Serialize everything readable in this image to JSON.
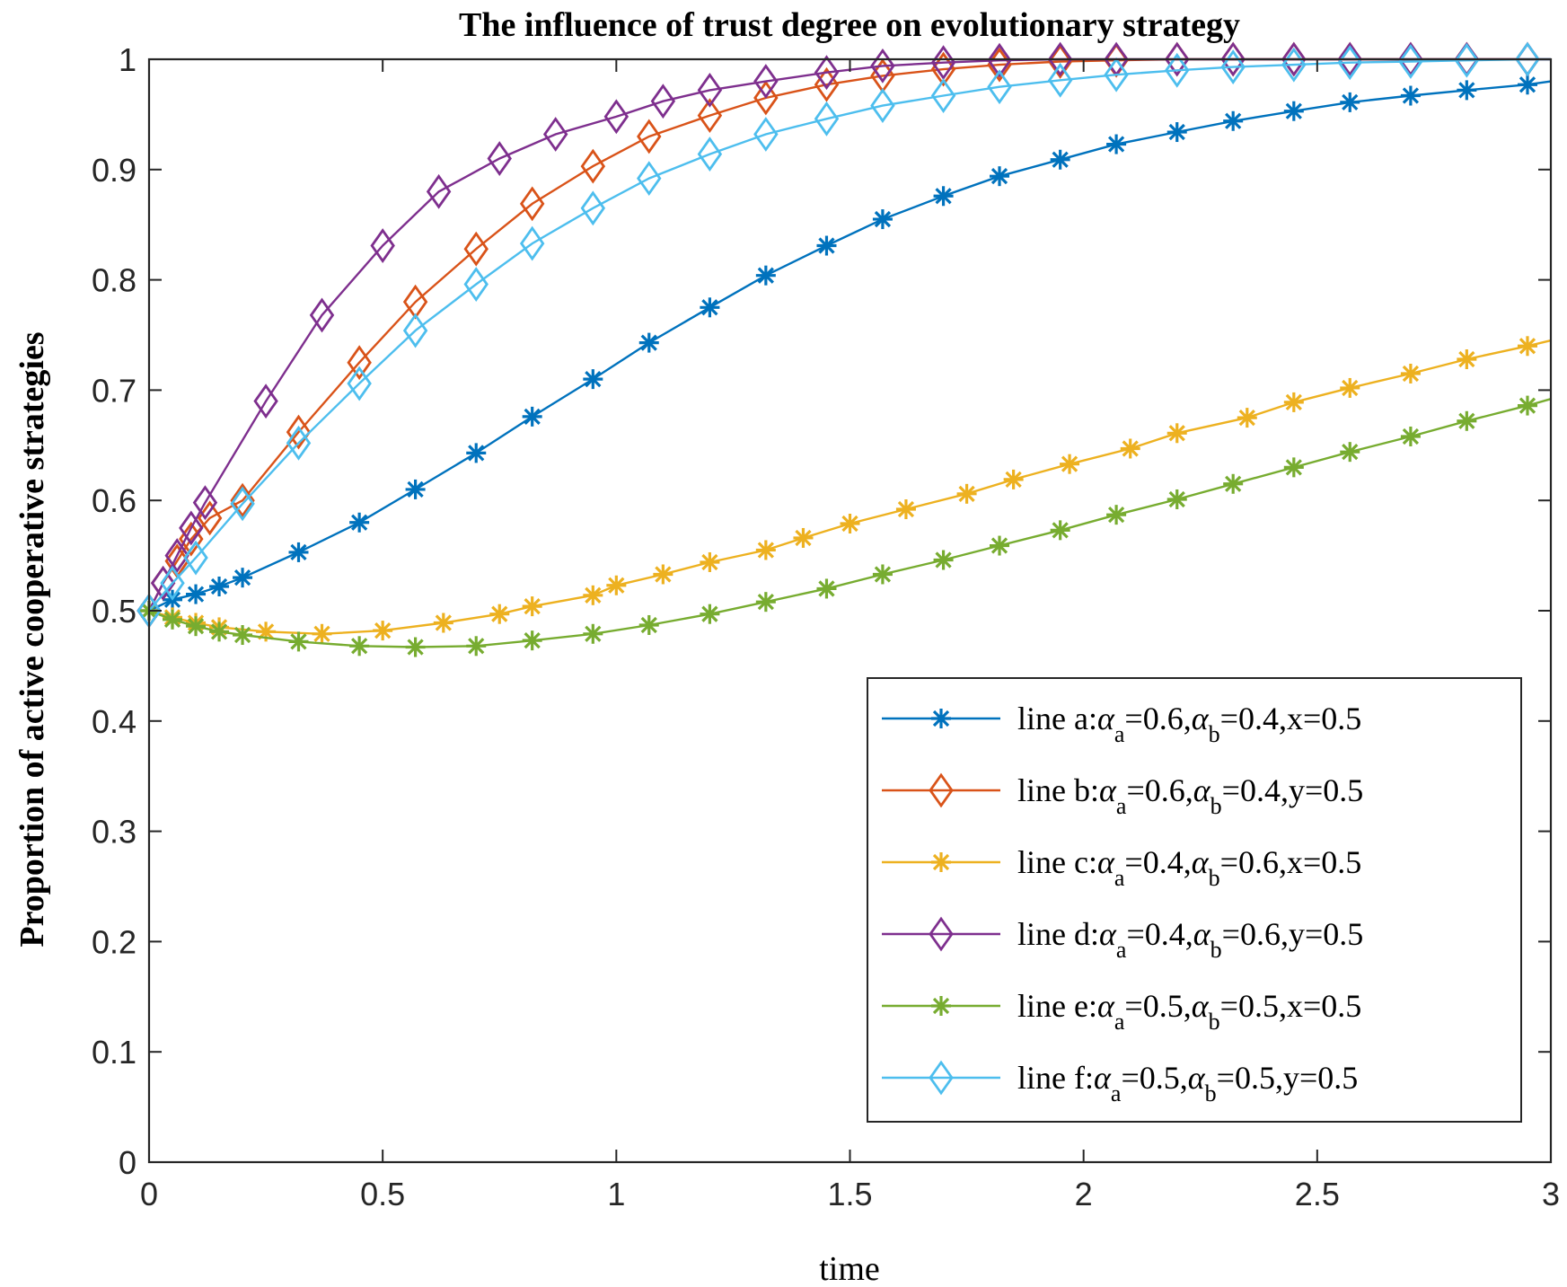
{
  "chart_data": {
    "type": "line",
    "title": "The influence of trust degree on evolutionary strategy",
    "xlabel": "time",
    "ylabel": "Proportion of active cooperative strategies",
    "xlim": [
      0,
      3
    ],
    "ylim": [
      0,
      1
    ],
    "xticks": [
      0,
      0.5,
      1,
      1.5,
      2,
      2.5,
      3
    ],
    "xtick_labels": [
      "0",
      "0.5",
      "1",
      "1.5",
      "2",
      "2.5",
      "3"
    ],
    "yticks": [
      0,
      0.1,
      0.2,
      0.3,
      0.4,
      0.5,
      0.6,
      0.7,
      0.8,
      0.9,
      1
    ],
    "ytick_labels": [
      "0",
      "0.1",
      "0.2",
      "0.3",
      "0.4",
      "0.5",
      "0.6",
      "0.7",
      "0.8",
      "0.9",
      "1"
    ],
    "grid": false,
    "legend_position": "bottom-right",
    "legend_greek": "α",
    "series": [
      {
        "name": "line a:αa=0.6,αb=0.4,x=0.5",
        "legend_parts": {
          "prefix": "line a:",
          "sub1": "a",
          "v1": "=0.6,",
          "sub2": "b",
          "v2": "=0.4,x=0.5"
        },
        "color": "#0072BD",
        "marker": "asterisk",
        "points": [
          [
            0,
            0.5
          ],
          [
            0.05,
            0.51
          ],
          [
            0.1,
            0.515
          ],
          [
            0.15,
            0.522
          ],
          [
            0.2,
            0.53
          ],
          [
            0.32,
            0.553
          ],
          [
            0.45,
            0.58
          ],
          [
            0.57,
            0.61
          ],
          [
            0.7,
            0.643
          ],
          [
            0.82,
            0.676
          ],
          [
            0.95,
            0.71
          ],
          [
            1.07,
            0.743
          ],
          [
            1.2,
            0.775
          ],
          [
            1.32,
            0.804
          ],
          [
            1.45,
            0.831
          ],
          [
            1.57,
            0.855
          ],
          [
            1.7,
            0.876
          ],
          [
            1.82,
            0.894
          ],
          [
            1.95,
            0.909
          ],
          [
            2.07,
            0.923
          ],
          [
            2.2,
            0.934
          ],
          [
            2.32,
            0.944
          ],
          [
            2.45,
            0.953
          ],
          [
            2.57,
            0.961
          ],
          [
            2.7,
            0.967
          ],
          [
            2.82,
            0.972
          ],
          [
            2.95,
            0.977
          ],
          [
            3,
            0.98
          ]
        ]
      },
      {
        "name": "line b:αa=0.6,αb=0.4,y=0.5",
        "legend_parts": {
          "prefix": "line b:",
          "sub1": "a",
          "v1": "=0.6,",
          "sub2": "b",
          "v2": "=0.4,y=0.5"
        },
        "color": "#D95319",
        "marker": "diamond",
        "points": [
          [
            0,
            0.5
          ],
          [
            0.03,
            0.525
          ],
          [
            0.06,
            0.545
          ],
          [
            0.09,
            0.565
          ],
          [
            0.13,
            0.584
          ],
          [
            0.2,
            0.6
          ],
          [
            0.32,
            0.662
          ],
          [
            0.45,
            0.725
          ],
          [
            0.57,
            0.78
          ],
          [
            0.7,
            0.828
          ],
          [
            0.82,
            0.869
          ],
          [
            0.95,
            0.903
          ],
          [
            1.07,
            0.93
          ],
          [
            1.2,
            0.949
          ],
          [
            1.32,
            0.965
          ],
          [
            1.45,
            0.977
          ],
          [
            1.57,
            0.985
          ],
          [
            1.7,
            0.991
          ],
          [
            1.82,
            0.995
          ],
          [
            1.95,
            0.998
          ],
          [
            2.07,
            0.999
          ],
          [
            2.2,
            1.0
          ],
          [
            2.32,
            1.0
          ],
          [
            2.45,
            1.0
          ],
          [
            2.57,
            1.0
          ],
          [
            2.7,
            1.0
          ],
          [
            2.82,
            1.0
          ],
          [
            2.95,
            1.0
          ],
          [
            3,
            1.0
          ]
        ]
      },
      {
        "name": "line c:αa=0.4,αb=0.6,x=0.5",
        "legend_parts": {
          "prefix": "line c:",
          "sub1": "a",
          "v1": "=0.4,",
          "sub2": "b",
          "v2": "=0.6,x=0.5"
        },
        "color": "#EDB120",
        "marker": "asterisk",
        "points": [
          [
            0,
            0.5
          ],
          [
            0.05,
            0.494
          ],
          [
            0.1,
            0.489
          ],
          [
            0.15,
            0.485
          ],
          [
            0.25,
            0.481
          ],
          [
            0.37,
            0.479
          ],
          [
            0.5,
            0.482
          ],
          [
            0.63,
            0.489
          ],
          [
            0.75,
            0.497
          ],
          [
            0.82,
            0.504
          ],
          [
            0.95,
            0.514
          ],
          [
            1.0,
            0.523
          ],
          [
            1.1,
            0.533
          ],
          [
            1.2,
            0.544
          ],
          [
            1.32,
            0.555
          ],
          [
            1.4,
            0.566
          ],
          [
            1.5,
            0.579
          ],
          [
            1.62,
            0.592
          ],
          [
            1.75,
            0.606
          ],
          [
            1.85,
            0.619
          ],
          [
            1.97,
            0.633
          ],
          [
            2.1,
            0.647
          ],
          [
            2.2,
            0.661
          ],
          [
            2.35,
            0.675
          ],
          [
            2.45,
            0.689
          ],
          [
            2.57,
            0.702
          ],
          [
            2.7,
            0.715
          ],
          [
            2.82,
            0.728
          ],
          [
            2.95,
            0.74
          ],
          [
            3,
            0.745
          ]
        ]
      },
      {
        "name": "line d:αa=0.4,αb=0.6,y=0.5",
        "legend_parts": {
          "prefix": "line d:",
          "sub1": "a",
          "v1": "=0.4,",
          "sub2": "b",
          "v2": "=0.6,y=0.5"
        },
        "color": "#7E2F8E",
        "marker": "diamond",
        "points": [
          [
            0,
            0.5
          ],
          [
            0.03,
            0.525
          ],
          [
            0.06,
            0.55
          ],
          [
            0.09,
            0.575
          ],
          [
            0.12,
            0.598
          ],
          [
            0.25,
            0.69
          ],
          [
            0.37,
            0.768
          ],
          [
            0.5,
            0.831
          ],
          [
            0.62,
            0.88
          ],
          [
            0.75,
            0.91
          ],
          [
            0.87,
            0.932
          ],
          [
            1.0,
            0.948
          ],
          [
            1.1,
            0.962
          ],
          [
            1.2,
            0.972
          ],
          [
            1.32,
            0.98
          ],
          [
            1.45,
            0.988
          ],
          [
            1.57,
            0.994
          ],
          [
            1.7,
            0.997
          ],
          [
            1.82,
            0.999
          ],
          [
            1.95,
            1.0
          ],
          [
            2.07,
            1.0
          ],
          [
            2.2,
            1.0
          ],
          [
            2.32,
            1.0
          ],
          [
            2.45,
            1.0
          ],
          [
            2.57,
            1.0
          ],
          [
            2.7,
            1.0
          ],
          [
            2.82,
            1.0
          ],
          [
            2.95,
            1.0
          ],
          [
            3,
            1.0
          ]
        ]
      },
      {
        "name": "line e:αa=0.5,αb=0.5,x=0.5",
        "legend_parts": {
          "prefix": "line e:",
          "sub1": "a",
          "v1": "=0.5,",
          "sub2": "b",
          "v2": "=0.5,x=0.5"
        },
        "color": "#77AC30",
        "marker": "asterisk",
        "points": [
          [
            0,
            0.5
          ],
          [
            0.05,
            0.492
          ],
          [
            0.1,
            0.486
          ],
          [
            0.15,
            0.481
          ],
          [
            0.2,
            0.478
          ],
          [
            0.32,
            0.472
          ],
          [
            0.45,
            0.468
          ],
          [
            0.57,
            0.467
          ],
          [
            0.7,
            0.468
          ],
          [
            0.82,
            0.473
          ],
          [
            0.95,
            0.479
          ],
          [
            1.07,
            0.487
          ],
          [
            1.2,
            0.497
          ],
          [
            1.32,
            0.508
          ],
          [
            1.45,
            0.52
          ],
          [
            1.57,
            0.533
          ],
          [
            1.7,
            0.546
          ],
          [
            1.82,
            0.559
          ],
          [
            1.95,
            0.573
          ],
          [
            2.07,
            0.587
          ],
          [
            2.2,
            0.601
          ],
          [
            2.32,
            0.615
          ],
          [
            2.45,
            0.63
          ],
          [
            2.57,
            0.644
          ],
          [
            2.7,
            0.658
          ],
          [
            2.82,
            0.672
          ],
          [
            2.95,
            0.686
          ],
          [
            3,
            0.692
          ]
        ]
      },
      {
        "name": "line f:αa=0.5,αb=0.5,y=0.5",
        "legend_parts": {
          "prefix": "line f:",
          "sub1": "a",
          "v1": "=0.5,",
          "sub2": "b",
          "v2": "=0.5,y=0.5"
        },
        "color": "#4DBEEE",
        "marker": "diamond",
        "points": [
          [
            0,
            0.5
          ],
          [
            0.05,
            0.525
          ],
          [
            0.1,
            0.548
          ],
          [
            0.2,
            0.597
          ],
          [
            0.32,
            0.652
          ],
          [
            0.45,
            0.706
          ],
          [
            0.57,
            0.754
          ],
          [
            0.7,
            0.796
          ],
          [
            0.82,
            0.833
          ],
          [
            0.95,
            0.865
          ],
          [
            1.07,
            0.892
          ],
          [
            1.2,
            0.914
          ],
          [
            1.32,
            0.932
          ],
          [
            1.45,
            0.946
          ],
          [
            1.57,
            0.958
          ],
          [
            1.7,
            0.967
          ],
          [
            1.82,
            0.975
          ],
          [
            1.95,
            0.981
          ],
          [
            2.07,
            0.986
          ],
          [
            2.2,
            0.99
          ],
          [
            2.32,
            0.993
          ],
          [
            2.45,
            0.995
          ],
          [
            2.57,
            0.997
          ],
          [
            2.7,
            0.998
          ],
          [
            2.82,
            0.999
          ],
          [
            2.95,
            1.0
          ],
          [
            3,
            1.0
          ]
        ]
      }
    ]
  }
}
